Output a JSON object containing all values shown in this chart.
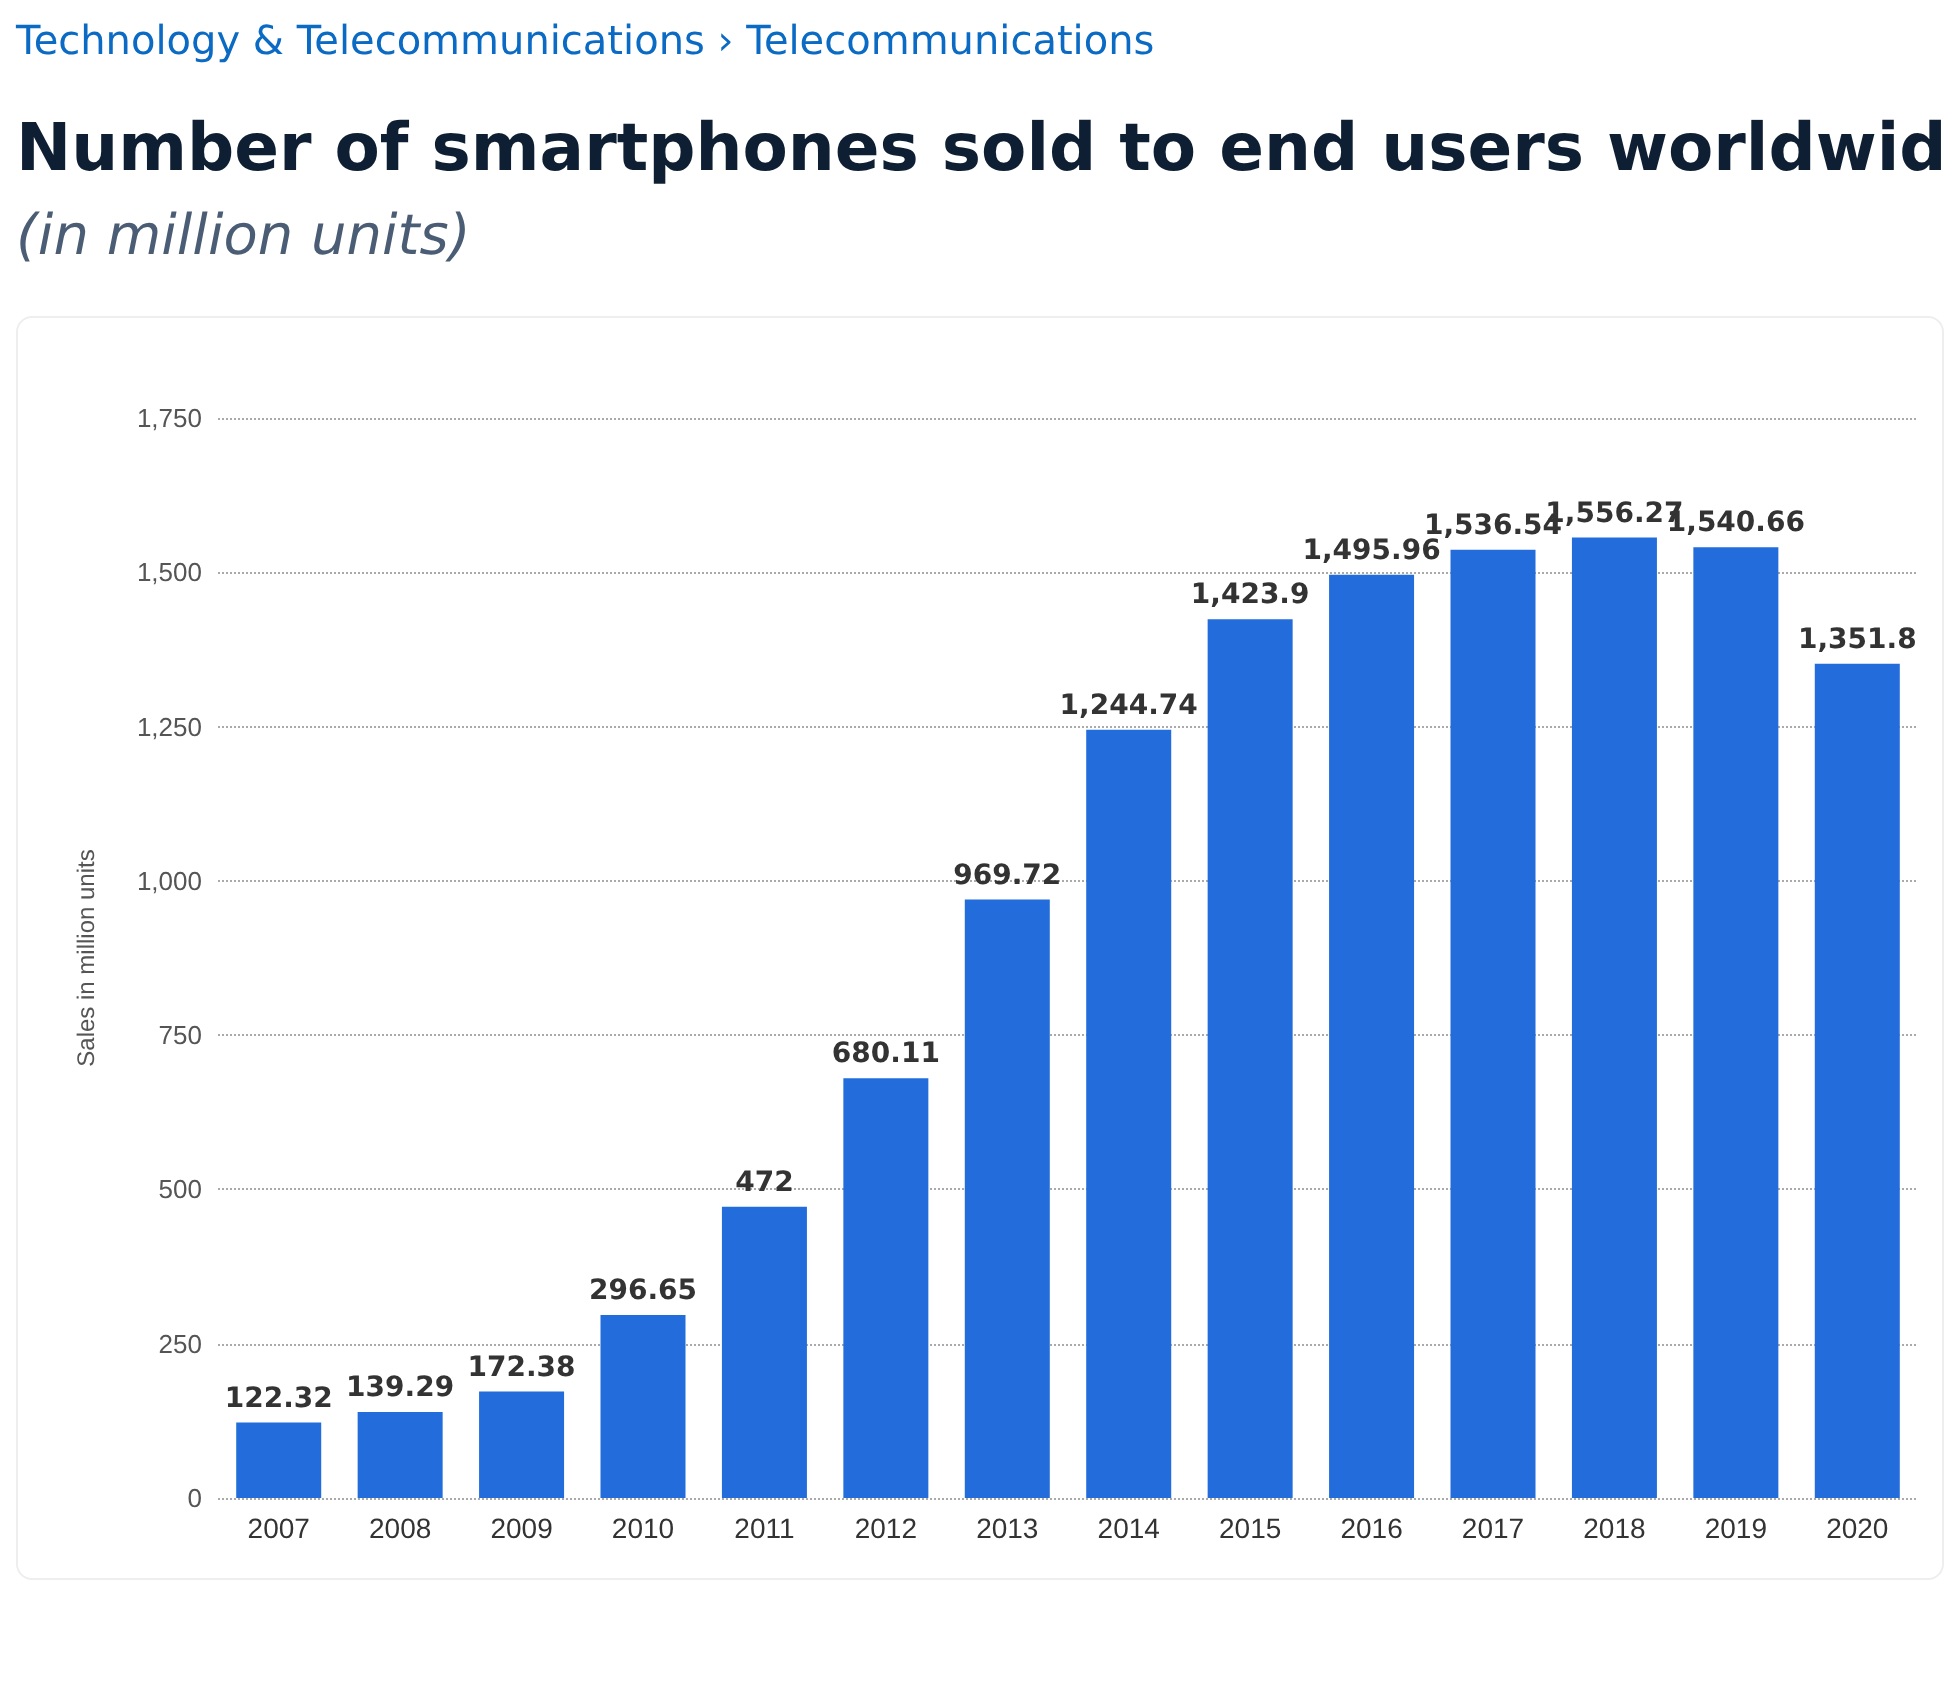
{
  "chart_data": {
    "type": "bar",
    "title": "Number of smartphones sold to end users worldwid",
    "subtitle": "(in million units)",
    "annotations": [
      "Technology & Telecommunications › Telecommunications"
    ],
    "ylabel": "Sales in million units",
    "categories": [
      "2007",
      "2008",
      "2009",
      "2010",
      "2011",
      "2012",
      "2013",
      "2014",
      "2015",
      "2016",
      "2017",
      "2018",
      "2019",
      "2020"
    ],
    "values": [
      122.32,
      139.29,
      172.38,
      296.65,
      472,
      680.11,
      969.72,
      1244.74,
      1423.9,
      1495.96,
      1536.54,
      1556.27,
      1540.66,
      1351.8
    ],
    "value_labels": [
      "122.32",
      "139.29",
      "172.38",
      "296.65",
      "472",
      "680.11",
      "969.72",
      "1,244.74",
      "1,423.9",
      "1,495.96",
      "1,536.54",
      "1,556.27",
      "1,540.66",
      "1,351.8"
    ],
    "color": "#226ddb",
    "ylim": [
      0,
      1750
    ],
    "yticks": [
      {
        "value": 0,
        "label": "0"
      },
      {
        "value": 250,
        "label": "250"
      },
      {
        "value": 500,
        "label": "500"
      },
      {
        "value": 750,
        "label": "750"
      },
      {
        "value": 1000,
        "label": "1,000"
      },
      {
        "value": 1250,
        "label": "1,250"
      },
      {
        "value": 1500,
        "label": "1,500"
      },
      {
        "value": 1750,
        "label": "1,750"
      }
    ],
    "grid": "y"
  }
}
